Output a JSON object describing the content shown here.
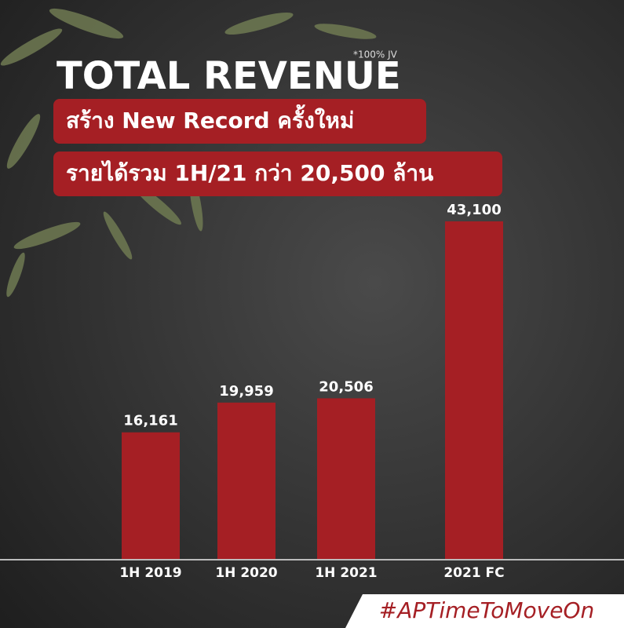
{
  "chart_data": {
    "type": "bar",
    "title": "TOTAL REVENUE",
    "note": "*100% JV",
    "subtitle": [
      "สร้าง New Record ครั้งใหม่",
      "รายได้รวม 1H/21 กว่า 20,500 ล้าน"
    ],
    "categories": [
      "1H 2019",
      "1H 2020",
      "1H 2021",
      "2021 FC"
    ],
    "values": [
      16161,
      19959,
      20506,
      43100
    ],
    "value_labels": [
      "16,161",
      "19,959",
      "20,506",
      "43,100"
    ],
    "color": "#a51f24",
    "ylim": [
      0,
      45000
    ],
    "hashtag": "#APTimeToMoveOn"
  }
}
